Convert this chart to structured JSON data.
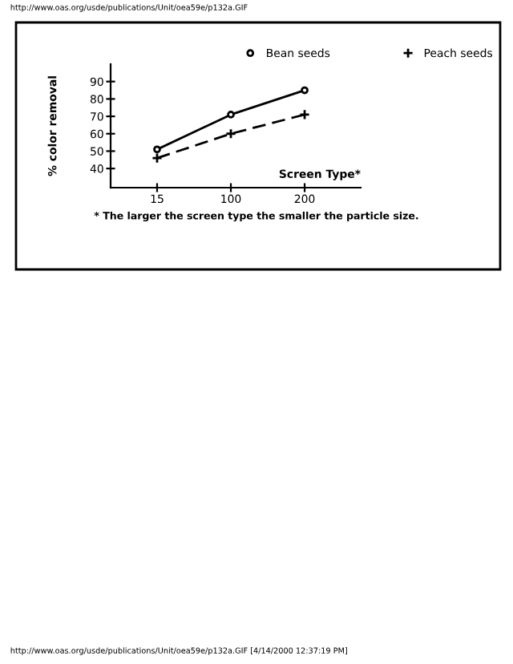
{
  "chart_data": {
    "type": "line",
    "xlabel": "Screen Type*",
    "ylabel": "% color removal",
    "categories": [
      "15",
      "100",
      "200"
    ],
    "series": [
      {
        "name": "Bean seeds",
        "color": "#000000",
        "values": [
          51,
          71,
          85
        ],
        "marker": "circle",
        "line_style": "solid"
      },
      {
        "name": "Peach seeds",
        "color": "#000000",
        "values": [
          46,
          60,
          71
        ],
        "marker": "cross",
        "line_style": "dashed"
      }
    ],
    "ylim": [
      29,
      100
    ],
    "yticks": [
      40,
      50,
      60,
      70,
      80,
      90
    ],
    "grid": false,
    "legend": "top right",
    "annotations": [
      "http://www.oas.org/usde/publications/Unit/oea59e/p132a.GIF",
      "* The larger the screen type the smaller the particle size.",
      "http://www.oas.org/usde/publications/Unit/oea59e/p132a.GIF [4/14/2000 12:37:19 PM]"
    ]
  }
}
